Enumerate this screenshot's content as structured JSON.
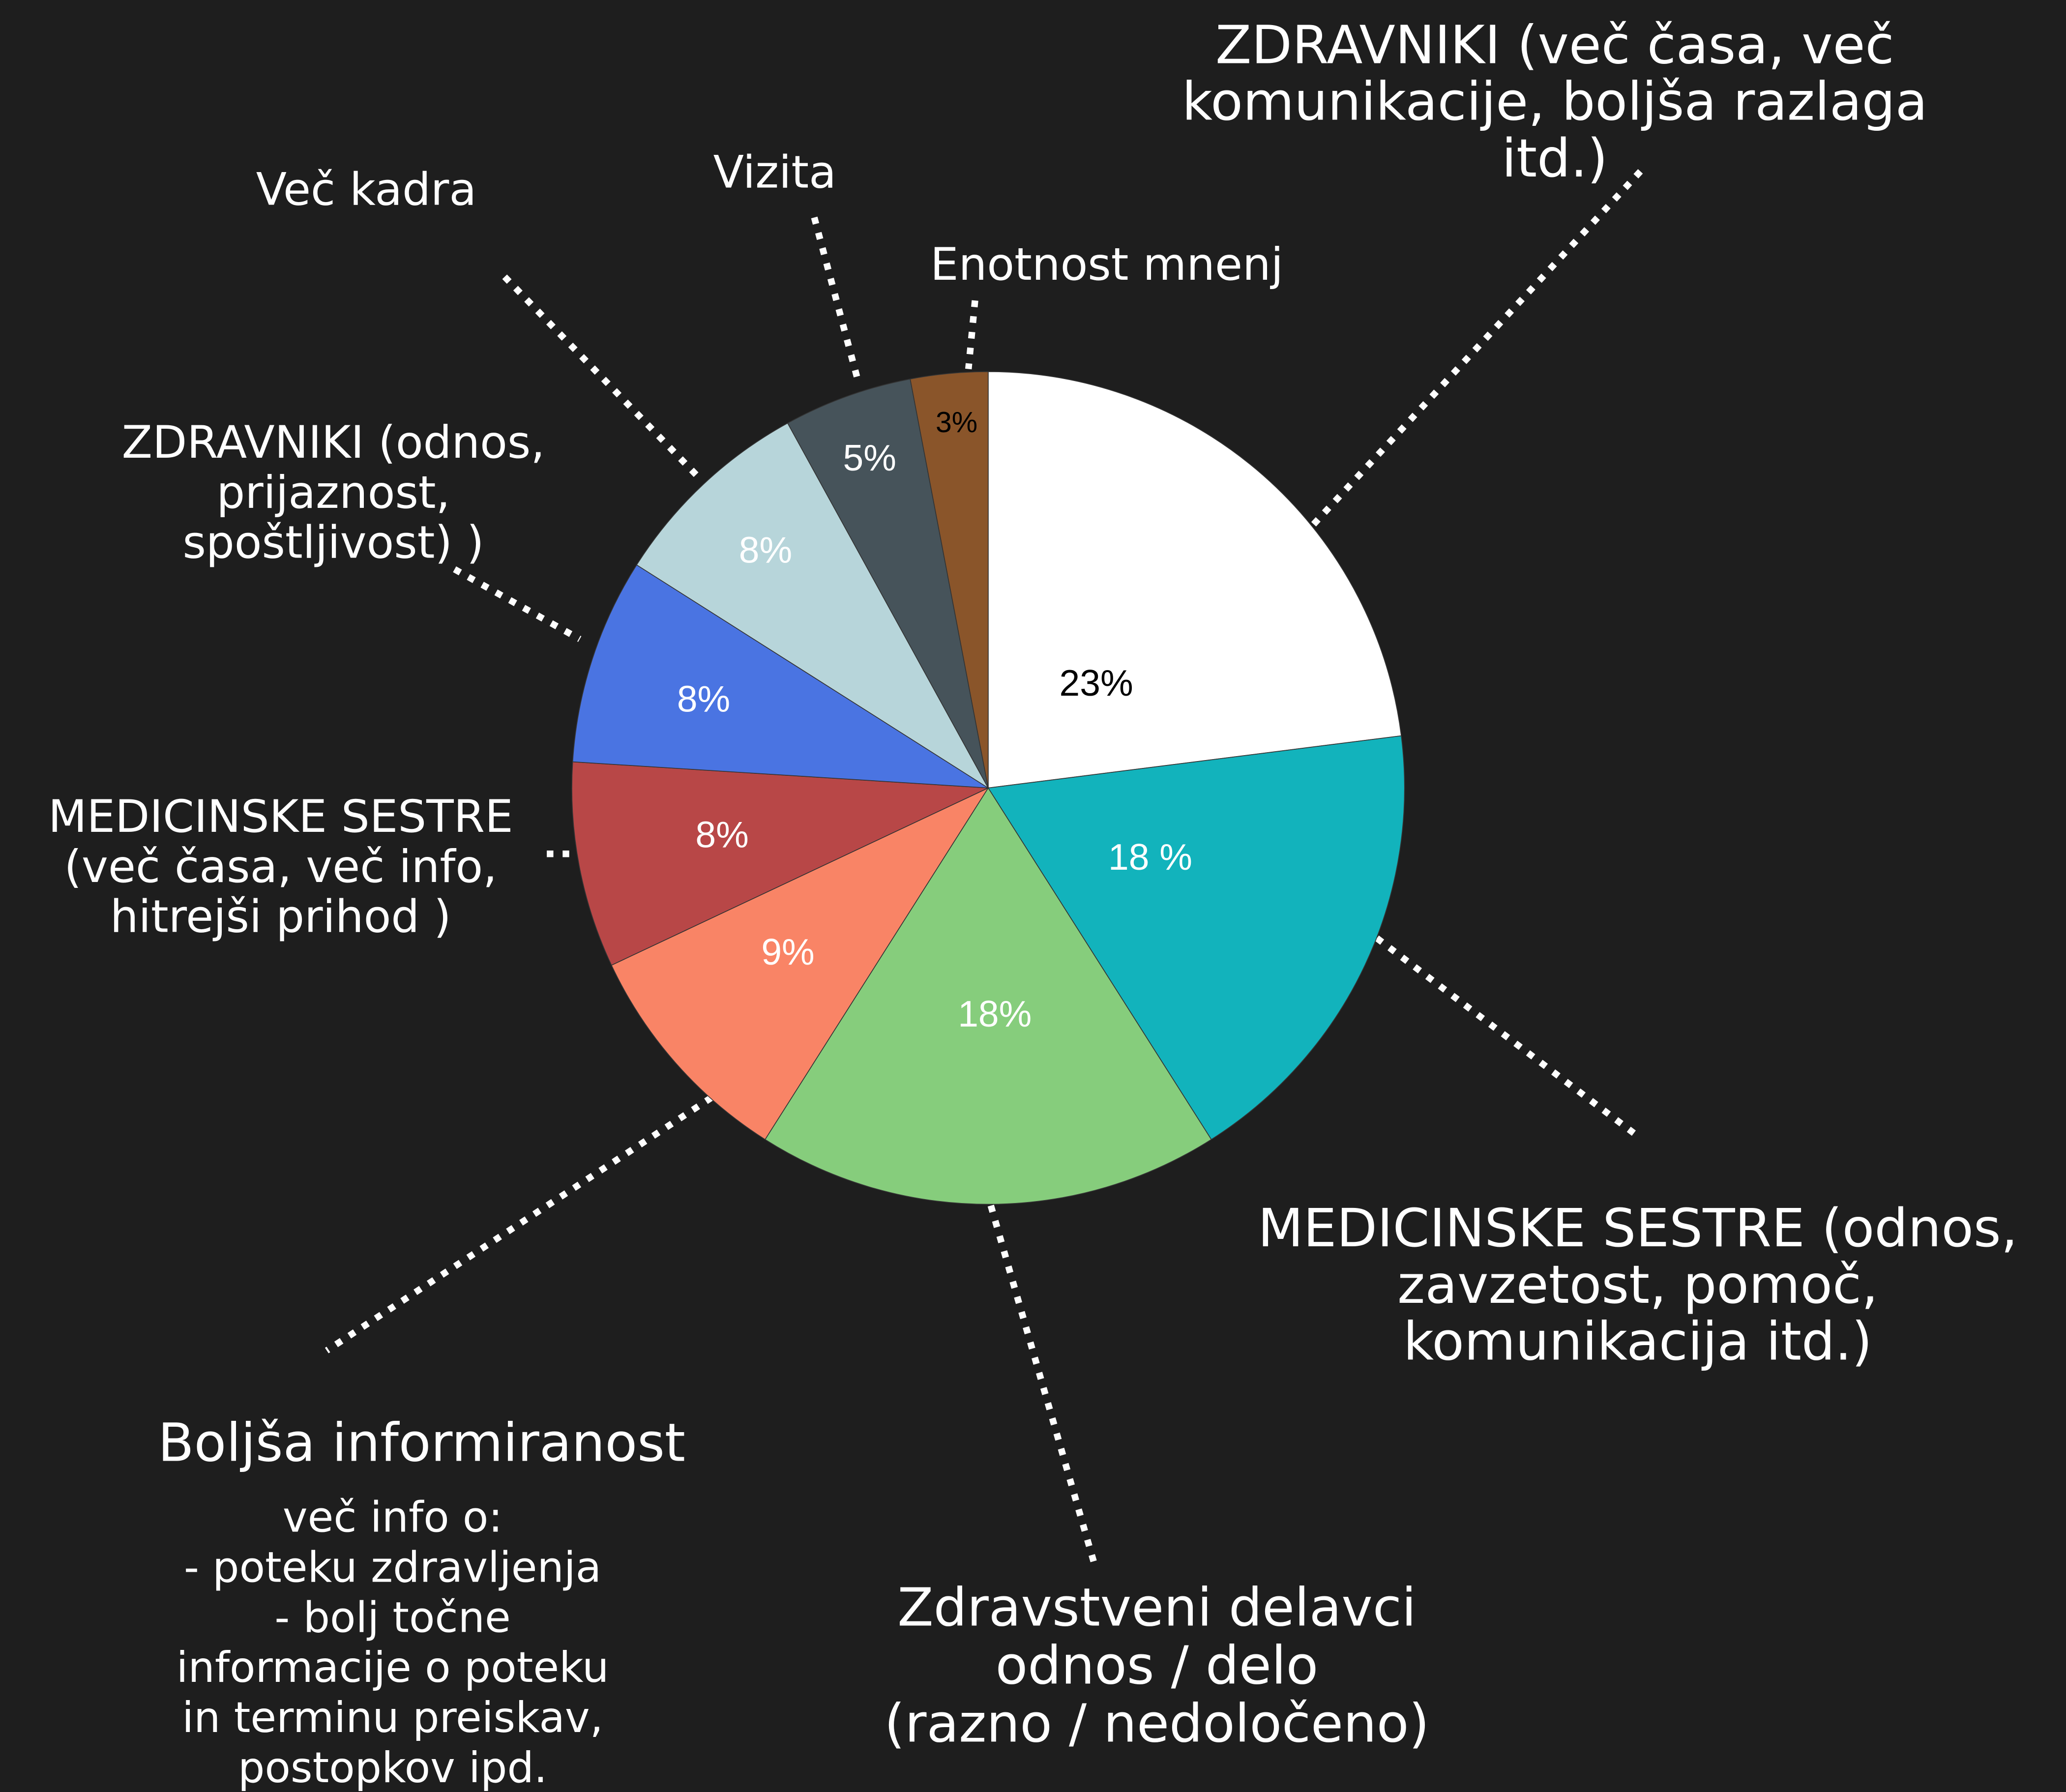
{
  "chart_data": {
    "type": "pie",
    "categories": [
      "ZDRAVNIKI (več časa, več\nkomunikacije, boljša razlaga\nitd.)",
      "MEDICINSKE SESTRE (odnos,\nzavzetost, pomoč,\nkomunikacija itd.)",
      "Zdravstveni delavci\nodnos / delo\n(razno / nedoločeno)",
      "Boljša informiranost",
      "MEDICINSKE SESTRE\n(več časa, več info,\nhitrejši prihod )",
      "ZDRAVNIKI (odnos,\nprijaznost,\nspoštljivost) )",
      "Več kadra",
      "Vizita",
      "Enotnost mnenj"
    ],
    "values": [
      23,
      18,
      18,
      9,
      8,
      8,
      8,
      5,
      3
    ],
    "value_labels": [
      "23%",
      "18 %",
      "18%",
      "9%",
      "8%",
      "8%",
      "8%",
      "5%",
      "3%"
    ],
    "colors": [
      "#ffffff",
      "#12b3bc",
      "#86cd7c",
      "#f98466",
      "#b84747",
      "#4a74e2",
      "#b7d5da",
      "#46535a",
      "#8a552a"
    ],
    "annotations": [
      {
        "text": "več info o:\n- poteku zdravljenja\n- bolj točne\ninformacije o poteku\nin terminu preiskav,\npostopkov ipd."
      }
    ]
  }
}
